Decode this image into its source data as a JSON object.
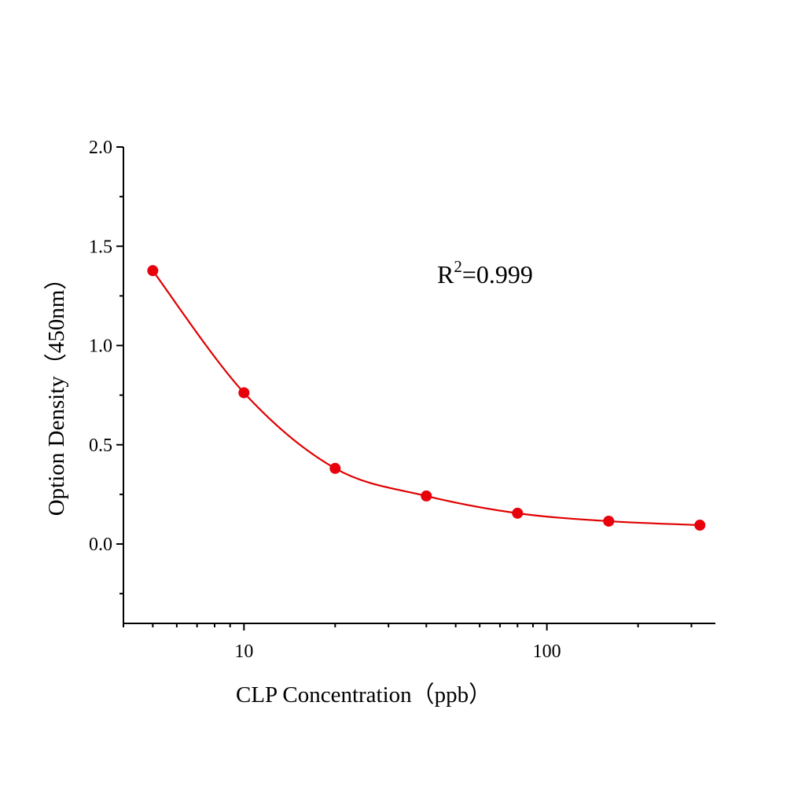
{
  "chart_data": {
    "type": "scatter",
    "title": "",
    "xlabel": "CLP  Concentration（ppb）",
    "ylabel": "Option Density（450nm）",
    "x_scale": "log",
    "xlim": [
      4,
      360
    ],
    "ylim": [
      -0.4,
      2.0
    ],
    "x_ticks": [
      10,
      100
    ],
    "x_tick_labels": [
      "10",
      "100"
    ],
    "y_ticks": [
      0.0,
      0.5,
      1.0,
      1.5,
      2.0
    ],
    "y_tick_labels": [
      "0.0",
      "0.5",
      "1.0",
      "1.5",
      "2.0"
    ],
    "grid": false,
    "series": [
      {
        "x": [
          5,
          10,
          20,
          40,
          80,
          160,
          320
        ],
        "y": [
          1.377,
          0.762,
          0.381,
          0.242,
          0.155,
          0.115,
          0.095
        ],
        "marker": "circle",
        "fit_line": true,
        "color": "#e8000b"
      }
    ],
    "annotation": {
      "base": "R",
      "sup": "2",
      "rest": "=0.999"
    }
  }
}
